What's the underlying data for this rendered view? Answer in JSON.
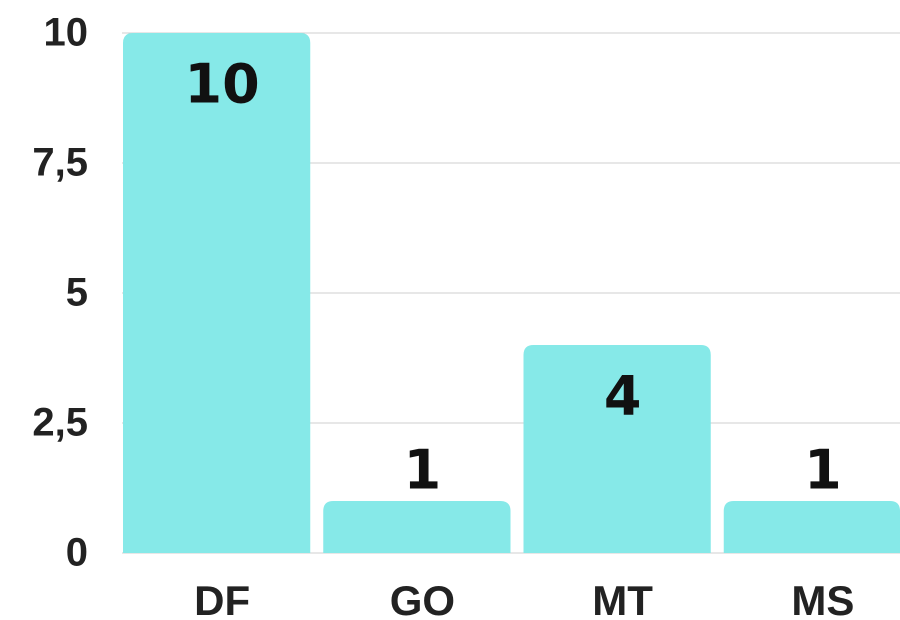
{
  "chart_data": {
    "type": "bar",
    "categories": [
      "DF",
      "GO",
      "MT",
      "MS"
    ],
    "values": [
      10,
      1,
      4,
      1
    ],
    "color": "#86e9e8",
    "ylim": [
      0,
      10
    ],
    "yticks": [
      0,
      {
        "value": 2.5,
        "label": "2,5"
      },
      5,
      {
        "value": 7.5,
        "label": "7,5"
      },
      10
    ],
    "grid": true
  }
}
